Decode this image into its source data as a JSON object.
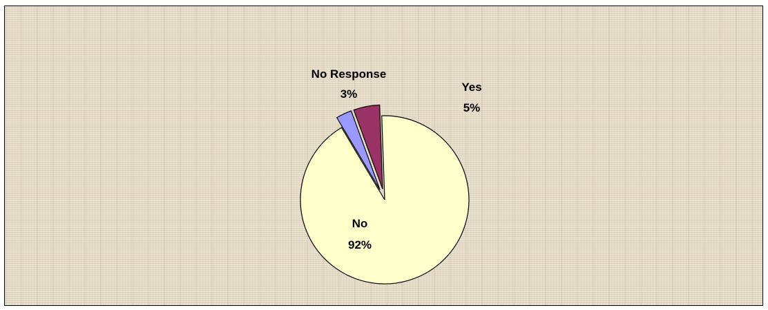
{
  "chart_data": {
    "type": "pie",
    "slices": [
      {
        "label": "No",
        "percent_label": "92%",
        "value": 92,
        "color": "#ffffcc",
        "exploded": false
      },
      {
        "label": "No Response",
        "percent_label": "3%",
        "value": 3,
        "color": "#9999ff",
        "exploded": true
      },
      {
        "label": "Yes",
        "percent_label": "5%",
        "value": 5,
        "color": "#993366",
        "exploded": true
      }
    ]
  }
}
